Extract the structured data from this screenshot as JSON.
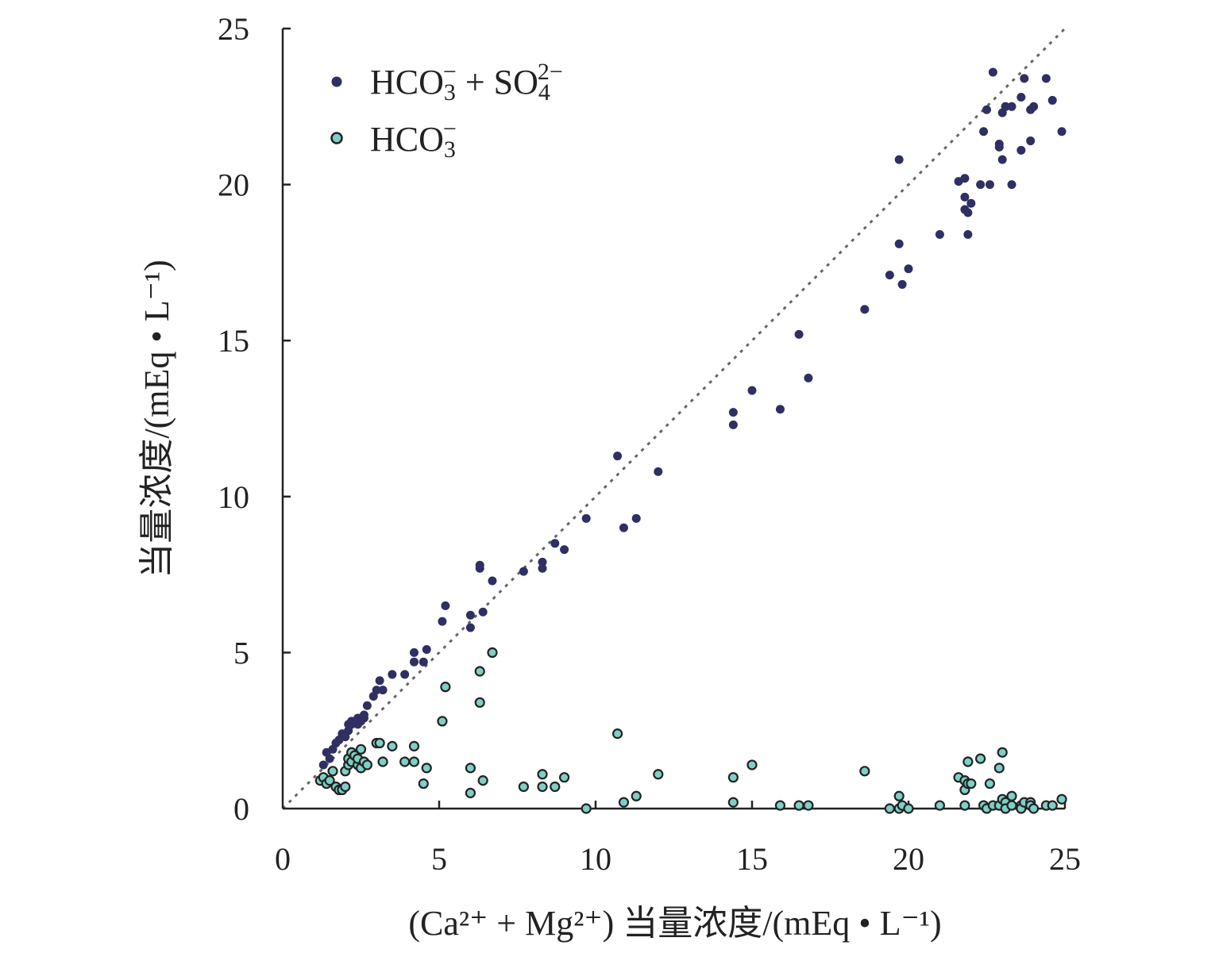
{
  "chart_data": {
    "type": "scatter",
    "xlabel": "(Ca²⁺ + Mg²⁺) 当量浓度/(mEq • L⁻¹)",
    "ylabel": "当量浓度/(mEq • L⁻¹)",
    "xlim": [
      0,
      25
    ],
    "ylim": [
      0,
      25
    ],
    "x_ticks": [
      "0",
      "5",
      "10",
      "15",
      "20",
      "25"
    ],
    "y_ticks": [
      "0",
      "5",
      "10",
      "15",
      "20",
      "25"
    ],
    "grid": false,
    "legend_position": "top-left",
    "reference_line": "1:1 dotted",
    "series": [
      {
        "name": "HCO₃⁻ + SO₄²⁻",
        "color": "#2f2f63",
        "x": [
          1.3,
          1.4,
          1.5,
          1.6,
          1.7,
          1.8,
          1.9,
          2.0,
          2.1,
          2.1,
          2.2,
          2.2,
          2.3,
          2.4,
          2.4,
          2.5,
          2.5,
          2.6,
          2.6,
          2.7,
          2.9,
          3.0,
          3.1,
          3.2,
          3.5,
          3.9,
          4.2,
          4.2,
          4.5,
          4.6,
          5.1,
          5.2,
          6.0,
          6.0,
          6.3,
          6.3,
          6.4,
          6.7,
          7.7,
          8.3,
          8.3,
          8.7,
          9.0,
          9.7,
          10.7,
          10.9,
          11.3,
          12.0,
          14.4,
          14.4,
          15.0,
          15.9,
          16.5,
          16.8,
          18.6,
          19.4,
          19.7,
          19.7,
          19.8,
          20.0,
          21.0,
          21.6,
          21.8,
          21.8,
          21.8,
          21.9,
          21.9,
          22.0,
          22.3,
          22.4,
          22.5,
          22.6,
          22.7,
          22.9,
          22.9,
          23.0,
          23.0,
          23.1,
          23.1,
          23.3,
          23.3,
          23.6,
          23.6,
          23.7,
          23.9,
          23.9,
          24.0,
          24.4,
          24.6,
          24.9
        ],
        "y": [
          1.4,
          1.8,
          1.6,
          1.9,
          2.1,
          2.2,
          2.4,
          2.3,
          2.5,
          2.7,
          2.7,
          2.8,
          2.8,
          2.9,
          2.7,
          2.8,
          2.9,
          3.0,
          2.9,
          3.3,
          3.6,
          3.8,
          4.1,
          3.8,
          4.3,
          4.3,
          4.7,
          5.0,
          4.7,
          5.1,
          6.0,
          6.5,
          5.8,
          6.2,
          7.7,
          7.8,
          6.3,
          7.3,
          7.6,
          7.9,
          7.7,
          8.5,
          8.3,
          9.3,
          11.3,
          9.0,
          9.3,
          10.8,
          12.3,
          12.7,
          13.4,
          12.8,
          15.2,
          13.8,
          16.0,
          17.1,
          18.1,
          20.8,
          16.8,
          17.3,
          18.4,
          20.1,
          20.2,
          19.6,
          19.2,
          19.1,
          18.4,
          19.4,
          20.0,
          21.7,
          22.4,
          20.0,
          23.6,
          21.3,
          21.2,
          22.3,
          20.8,
          22.5,
          22.5,
          22.5,
          20.0,
          22.8,
          21.1,
          23.4,
          22.4,
          21.4,
          22.5,
          23.4,
          22.7,
          21.7
        ]
      },
      {
        "name": "HCO₃⁻",
        "color": "#7fcfc6",
        "x": [
          1.2,
          1.3,
          1.4,
          1.5,
          1.6,
          1.7,
          1.8,
          1.9,
          2.0,
          2.0,
          2.1,
          2.1,
          2.2,
          2.2,
          2.3,
          2.4,
          2.4,
          2.5,
          2.5,
          2.6,
          2.7,
          3.0,
          3.1,
          3.2,
          3.5,
          3.9,
          4.2,
          4.2,
          4.5,
          4.6,
          5.1,
          5.2,
          6.0,
          6.0,
          6.3,
          6.3,
          6.4,
          6.7,
          7.7,
          8.3,
          8.3,
          8.7,
          9.0,
          9.7,
          10.7,
          10.9,
          11.3,
          12.0,
          14.4,
          14.4,
          15.0,
          15.9,
          16.5,
          16.8,
          18.6,
          19.4,
          19.7,
          19.7,
          19.8,
          20.0,
          21.0,
          21.6,
          21.8,
          21.8,
          21.8,
          21.9,
          21.9,
          22.0,
          22.3,
          22.4,
          22.5,
          22.6,
          22.7,
          22.9,
          22.9,
          23.0,
          23.0,
          23.1,
          23.1,
          23.3,
          23.3,
          23.6,
          23.6,
          23.7,
          23.9,
          23.9,
          24.0,
          24.4,
          24.6,
          24.9
        ],
        "y": [
          0.9,
          1.0,
          0.8,
          0.9,
          1.2,
          0.7,
          0.6,
          0.6,
          0.7,
          1.2,
          1.4,
          1.6,
          1.5,
          1.8,
          1.7,
          1.4,
          1.6,
          1.3,
          1.9,
          1.5,
          1.4,
          2.1,
          2.1,
          1.5,
          2.0,
          1.5,
          2.0,
          1.5,
          0.8,
          1.3,
          2.8,
          3.9,
          0.5,
          1.3,
          3.4,
          4.4,
          0.9,
          5.0,
          0.7,
          1.1,
          0.7,
          0.7,
          1.0,
          0.0,
          2.4,
          0.2,
          0.4,
          1.1,
          0.2,
          1.0,
          1.4,
          0.1,
          0.1,
          0.1,
          1.2,
          0.0,
          0.0,
          0.4,
          0.1,
          0.0,
          0.1,
          1.0,
          0.6,
          0.9,
          0.1,
          1.5,
          0.8,
          0.8,
          1.6,
          0.1,
          0.0,
          0.8,
          0.1,
          0.1,
          1.3,
          0.3,
          1.8,
          0.2,
          0.0,
          0.4,
          0.1,
          0.1,
          0.0,
          0.2,
          0.2,
          0.1,
          0.0,
          0.1,
          0.1,
          0.3
        ]
      }
    ]
  }
}
